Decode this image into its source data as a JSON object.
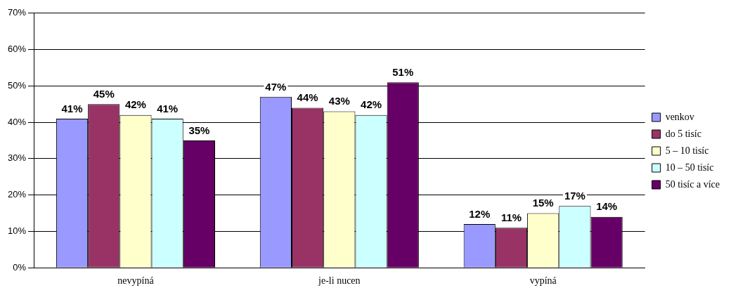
{
  "chart_data": {
    "type": "bar",
    "categories": [
      "nevypíná",
      "je-li nucen",
      "vypíná"
    ],
    "series": [
      {
        "name": "venkov",
        "color": "#9999ff",
        "values": [
          41,
          47,
          12
        ],
        "value_labels": [
          "41%",
          "47%",
          "12%"
        ]
      },
      {
        "name": "do 5 tisíc",
        "color": "#993366",
        "values": [
          45,
          44,
          11
        ],
        "value_labels": [
          "45%",
          "44%",
          "11%"
        ]
      },
      {
        "name": "5 – 10 tisíc",
        "color": "#ffffcc",
        "values": [
          42,
          43,
          15
        ],
        "value_labels": [
          "42%",
          "43%",
          "15%"
        ]
      },
      {
        "name": "10 – 50 tisíc",
        "color": "#ccffff",
        "values": [
          41,
          42,
          17
        ],
        "value_labels": [
          "41%",
          "42%",
          "17%"
        ]
      },
      {
        "name": "50 tisíc a více",
        "color": "#660066",
        "values": [
          35,
          51,
          14
        ],
        "value_labels": [
          "35%",
          "51%",
          "14%"
        ]
      }
    ],
    "ylim": [
      0,
      70
    ],
    "yticks": [
      {
        "value": 0,
        "label": "0%"
      },
      {
        "value": 10,
        "label": "10%"
      },
      {
        "value": 20,
        "label": "20%"
      },
      {
        "value": 30,
        "label": "30%"
      },
      {
        "value": 40,
        "label": "40%"
      },
      {
        "value": 50,
        "label": "50%"
      },
      {
        "value": 60,
        "label": "60%"
      },
      {
        "value": 70,
        "label": "70%"
      }
    ],
    "grid": "y",
    "legend": "right"
  }
}
